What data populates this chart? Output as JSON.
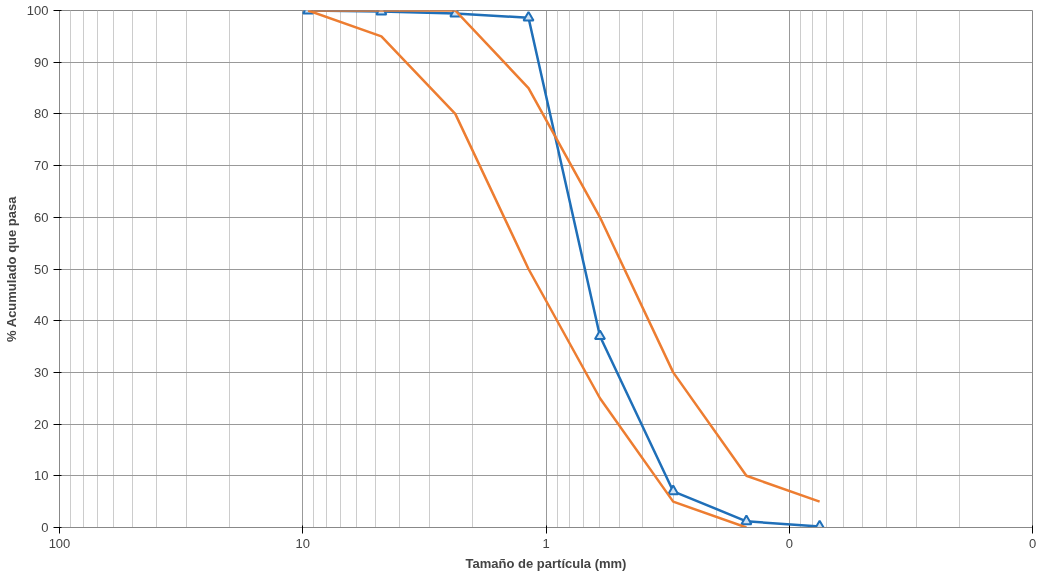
{
  "chart_data": {
    "type": "line",
    "xlabel": "Tamaño de partícula (mm)",
    "ylabel": "% Acumulado que pasa",
    "x": [
      9.5,
      4.75,
      2.36,
      1.18,
      0.6,
      0.3,
      0.15,
      0.075
    ],
    "series": [
      {
        "color": "#1f6fb8",
        "marker": "triangle",
        "values": [
          100,
          99.8,
          99.4,
          98.6,
          37,
          7,
          1.2,
          0.2
        ]
      },
      {
        "color": "#ed7d31",
        "marker": "none",
        "values": [
          100,
          95,
          80,
          50,
          25,
          5,
          0,
          null
        ]
      },
      {
        "color": "#ed7d31",
        "marker": "none",
        "values": [
          100,
          100,
          100,
          85,
          60,
          30,
          10,
          5
        ]
      }
    ],
    "log": "x",
    "xlim": [
      100,
      0.01
    ],
    "ylim": [
      0,
      100
    ],
    "xticks": [
      100,
      10,
      1,
      {
        "value": 0.1,
        "label": "0"
      },
      {
        "value": 0.01,
        "label": "0"
      }
    ],
    "yticks": [
      0,
      10,
      20,
      30,
      40,
      50,
      60,
      70,
      80,
      90,
      100
    ],
    "grid": true,
    "line_style": "solid"
  }
}
